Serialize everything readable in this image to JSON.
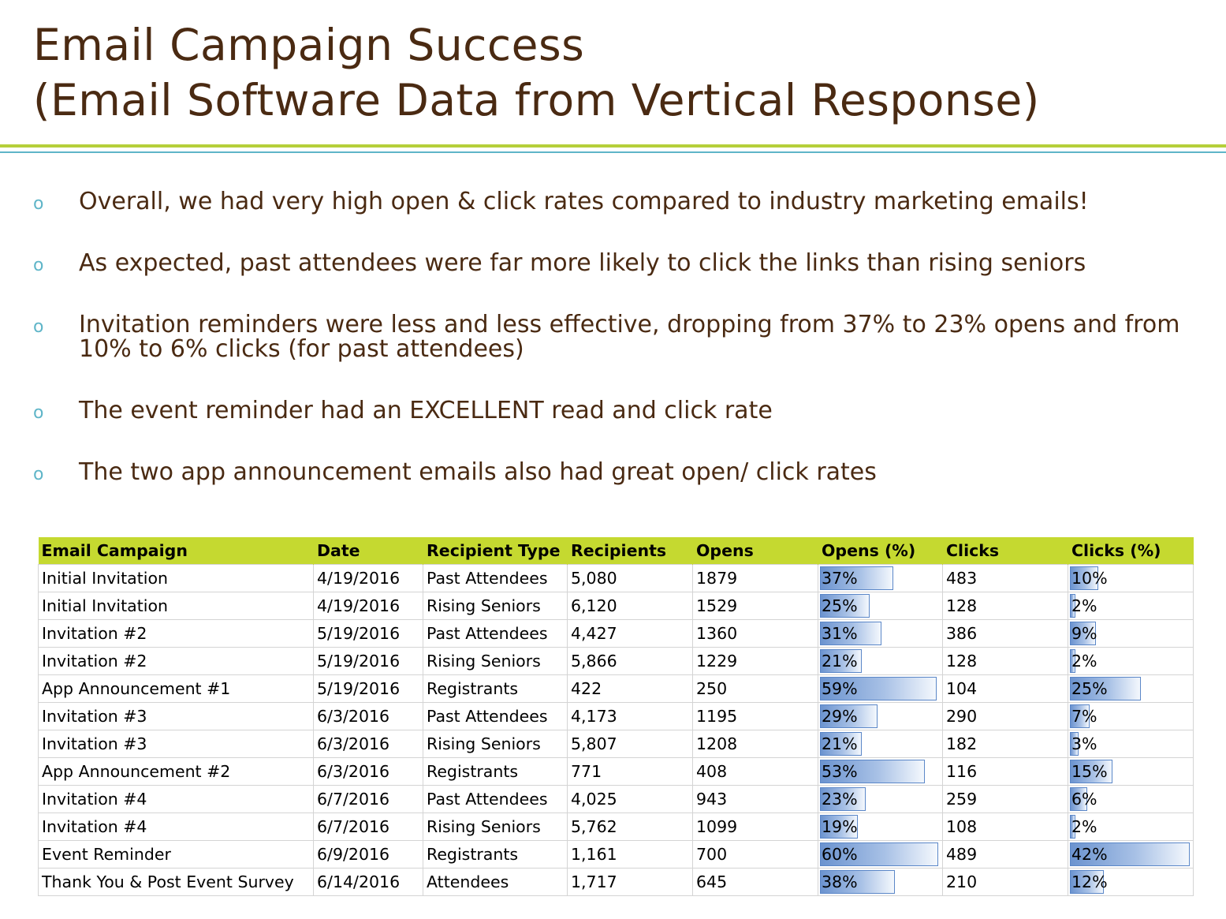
{
  "title_line1": "Email Campaign Success",
  "title_line2": "(Email Software Data from Vertical Response)",
  "bullet_glyph": "o",
  "bullets": [
    "Overall, we had very high open & click rates compared to industry marketing emails!",
    "As expected, past attendees were far more likely to click the links than rising seniors",
    "Invitation reminders were less and less effective, dropping from 37% to 23% opens and from 10% to 6% clicks (for past attendees)",
    "The event reminder had an EXCELLENT read and click rate",
    "The two app announcement emails also had great open/ click rates"
  ],
  "table": {
    "headers": [
      "Email Campaign",
      "Date",
      "Recipient Type",
      "Recipients",
      "Opens",
      "Opens (%)",
      "Clicks",
      "Clicks (%)"
    ],
    "rows": [
      {
        "campaign": "Initial Invitation",
        "date": "4/19/2016",
        "type": "Past Attendees",
        "recipients": "5,080",
        "opens": "1879",
        "opens_pct": "37%",
        "opens_pct_value": 37,
        "clicks": "483",
        "clicks_pct": "10%",
        "clicks_pct_value": 10
      },
      {
        "campaign": "Initial Invitation",
        "date": "4/19/2016",
        "type": "Rising Seniors",
        "recipients": "6,120",
        "opens": "1529",
        "opens_pct": "25%",
        "opens_pct_value": 25,
        "clicks": "128",
        "clicks_pct": "2%",
        "clicks_pct_value": 2
      },
      {
        "campaign": "Invitation #2",
        "date": "5/19/2016",
        "type": "Past Attendees",
        "recipients": "4,427",
        "opens": "1360",
        "opens_pct": "31%",
        "opens_pct_value": 31,
        "clicks": "386",
        "clicks_pct": "9%",
        "clicks_pct_value": 9
      },
      {
        "campaign": "Invitation #2",
        "date": "5/19/2016",
        "type": "Rising Seniors",
        "recipients": "5,866",
        "opens": "1229",
        "opens_pct": "21%",
        "opens_pct_value": 21,
        "clicks": "128",
        "clicks_pct": "2%",
        "clicks_pct_value": 2
      },
      {
        "campaign": "App Announcement #1",
        "date": "5/19/2016",
        "type": "Registrants",
        "recipients": "422",
        "opens": "250",
        "opens_pct": "59%",
        "opens_pct_value": 59,
        "clicks": "104",
        "clicks_pct": "25%",
        "clicks_pct_value": 25
      },
      {
        "campaign": "Invitation #3",
        "date": "6/3/2016",
        "type": "Past Attendees",
        "recipients": "4,173",
        "opens": "1195",
        "opens_pct": "29%",
        "opens_pct_value": 29,
        "clicks": "290",
        "clicks_pct": "7%",
        "clicks_pct_value": 7
      },
      {
        "campaign": "Invitation #3",
        "date": "6/3/2016",
        "type": "Rising Seniors",
        "recipients": "5,807",
        "opens": "1208",
        "opens_pct": "21%",
        "opens_pct_value": 21,
        "clicks": "182",
        "clicks_pct": "3%",
        "clicks_pct_value": 3
      },
      {
        "campaign": "App Announcement #2",
        "date": "6/3/2016",
        "type": "Registrants",
        "recipients": "771",
        "opens": "408",
        "opens_pct": "53%",
        "opens_pct_value": 53,
        "clicks": "116",
        "clicks_pct": "15%",
        "clicks_pct_value": 15
      },
      {
        "campaign": "Invitation #4",
        "date": "6/7/2016",
        "type": "Past Attendees",
        "recipients": "4,025",
        "opens": "943",
        "opens_pct": "23%",
        "opens_pct_value": 23,
        "clicks": "259",
        "clicks_pct": "6%",
        "clicks_pct_value": 6
      },
      {
        "campaign": "Invitation #4",
        "date": "6/7/2016",
        "type": "Rising Seniors",
        "recipients": "5,762",
        "opens": "1099",
        "opens_pct": "19%",
        "opens_pct_value": 19,
        "clicks": "108",
        "clicks_pct": "2%",
        "clicks_pct_value": 2
      },
      {
        "campaign": "Event Reminder",
        "date": "6/9/2016",
        "type": "Registrants",
        "recipients": "1,161",
        "opens": "700",
        "opens_pct": "60%",
        "opens_pct_value": 60,
        "clicks": "489",
        "clicks_pct": "42%",
        "clicks_pct_value": 42
      },
      {
        "campaign": "Thank You & Post Event Survey",
        "date": "6/14/2016",
        "type": "Attendees",
        "recipients": "1,717",
        "opens": "645",
        "opens_pct": "38%",
        "opens_pct_value": 38,
        "clicks": "210",
        "clicks_pct": "12%",
        "clicks_pct_value": 12
      }
    ]
  },
  "colors": {
    "title_text": "#4a2a12",
    "header_fill": "#c5d930",
    "rule_green": "#b5cf3a",
    "rule_blue": "#5fb5c8",
    "bullet_mark": "#5fb5c8",
    "databar": "#5b87c8"
  }
}
